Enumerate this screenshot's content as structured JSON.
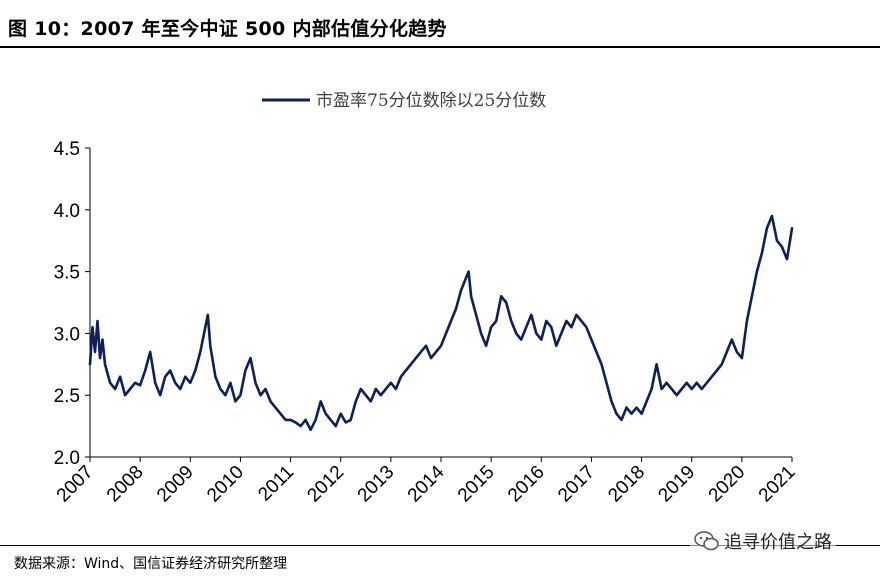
{
  "figure": {
    "title": "图 10：2007 年至今中证 500 内部估值分化趋势",
    "source": "数据来源：Wind、国信证券经济研究所整理",
    "watermark": "追寻价值之路",
    "watermark_icon": "wechat-icon"
  },
  "colors": {
    "series": "#0d1f5c",
    "axis": "#000000"
  },
  "chart_data": {
    "type": "line",
    "title": "",
    "xlabel": "",
    "ylabel": "",
    "ylim": [
      2.0,
      4.5
    ],
    "yticks": [
      "2.0",
      "2.5",
      "3.0",
      "3.5",
      "4.0",
      "4.5"
    ],
    "xlim": [
      2007.0,
      2021.0
    ],
    "xticks": [
      "2007",
      "2008",
      "2009",
      "2010",
      "2011",
      "2012",
      "2013",
      "2014",
      "2015",
      "2016",
      "2017",
      "2018",
      "2019",
      "2020",
      "2021"
    ],
    "grid": false,
    "legend_position": "top-center",
    "series": [
      {
        "name": "市盈率75分位数除以25分位数",
        "x": [
          2007.0,
          2007.05,
          2007.1,
          2007.15,
          2007.2,
          2007.25,
          2007.3,
          2007.4,
          2007.5,
          2007.6,
          2007.7,
          2007.8,
          2007.9,
          2008.0,
          2008.1,
          2008.2,
          2008.3,
          2008.4,
          2008.5,
          2008.6,
          2008.7,
          2008.8,
          2008.9,
          2009.0,
          2009.1,
          2009.2,
          2009.3,
          2009.35,
          2009.4,
          2009.5,
          2009.6,
          2009.7,
          2009.8,
          2009.9,
          2010.0,
          2010.1,
          2010.2,
          2010.3,
          2010.4,
          2010.5,
          2010.6,
          2010.7,
          2010.8,
          2010.9,
          2011.0,
          2011.1,
          2011.2,
          2011.3,
          2011.4,
          2011.5,
          2011.6,
          2011.7,
          2011.8,
          2011.9,
          2012.0,
          2012.1,
          2012.2,
          2012.3,
          2012.4,
          2012.5,
          2012.6,
          2012.7,
          2012.8,
          2012.9,
          2013.0,
          2013.1,
          2013.2,
          2013.3,
          2013.4,
          2013.5,
          2013.6,
          2013.7,
          2013.8,
          2013.9,
          2014.0,
          2014.1,
          2014.2,
          2014.3,
          2014.4,
          2014.5,
          2014.55,
          2014.6,
          2014.7,
          2014.8,
          2014.9,
          2015.0,
          2015.1,
          2015.2,
          2015.3,
          2015.4,
          2015.5,
          2015.6,
          2015.7,
          2015.8,
          2015.9,
          2016.0,
          2016.1,
          2016.2,
          2016.3,
          2016.4,
          2016.5,
          2016.6,
          2016.7,
          2016.8,
          2016.9,
          2017.0,
          2017.1,
          2017.2,
          2017.3,
          2017.4,
          2017.5,
          2017.6,
          2017.7,
          2017.8,
          2017.9,
          2018.0,
          2018.1,
          2018.2,
          2018.3,
          2018.4,
          2018.5,
          2018.6,
          2018.7,
          2018.8,
          2018.9,
          2019.0,
          2019.1,
          2019.2,
          2019.3,
          2019.4,
          2019.5,
          2019.6,
          2019.7,
          2019.8,
          2019.9,
          2020.0,
          2020.1,
          2020.2,
          2020.3,
          2020.4,
          2020.5,
          2020.6,
          2020.7,
          2020.8,
          2020.9,
          2021.0
        ],
        "values": [
          2.75,
          3.05,
          2.85,
          3.1,
          2.8,
          2.95,
          2.75,
          2.6,
          2.55,
          2.65,
          2.5,
          2.55,
          2.6,
          2.58,
          2.7,
          2.85,
          2.6,
          2.5,
          2.65,
          2.7,
          2.6,
          2.55,
          2.65,
          2.6,
          2.7,
          2.85,
          3.05,
          3.15,
          2.9,
          2.65,
          2.55,
          2.5,
          2.6,
          2.45,
          2.5,
          2.7,
          2.8,
          2.6,
          2.5,
          2.55,
          2.45,
          2.4,
          2.35,
          2.3,
          2.3,
          2.28,
          2.25,
          2.3,
          2.22,
          2.3,
          2.45,
          2.35,
          2.3,
          2.25,
          2.35,
          2.28,
          2.3,
          2.45,
          2.55,
          2.5,
          2.45,
          2.55,
          2.5,
          2.55,
          2.6,
          2.55,
          2.65,
          2.7,
          2.75,
          2.8,
          2.85,
          2.9,
          2.8,
          2.85,
          2.9,
          3.0,
          3.1,
          3.2,
          3.35,
          3.45,
          3.5,
          3.3,
          3.15,
          3.0,
          2.9,
          3.05,
          3.1,
          3.3,
          3.25,
          3.1,
          3.0,
          2.95,
          3.05,
          3.15,
          3.0,
          2.95,
          3.1,
          3.05,
          2.9,
          3.0,
          3.1,
          3.05,
          3.15,
          3.1,
          3.05,
          2.95,
          2.85,
          2.75,
          2.6,
          2.45,
          2.35,
          2.3,
          2.4,
          2.35,
          2.4,
          2.35,
          2.45,
          2.55,
          2.75,
          2.55,
          2.6,
          2.55,
          2.5,
          2.55,
          2.6,
          2.55,
          2.6,
          2.55,
          2.6,
          2.65,
          2.7,
          2.75,
          2.85,
          2.95,
          2.85,
          2.8,
          3.1,
          3.3,
          3.5,
          3.65,
          3.85,
          3.95,
          3.75,
          3.7,
          3.6,
          3.85
        ]
      }
    ]
  }
}
